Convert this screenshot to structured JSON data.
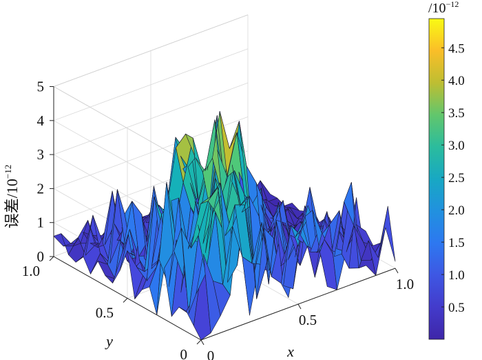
{
  "chart_data": {
    "type": "surface",
    "zlabel": "误差/10",
    "zlabel_exp": "−12",
    "xlabel": "x",
    "ylabel": "y",
    "colorbar_unit": "/10",
    "colorbar_unit_exp": "−12",
    "x_ticks": [
      {
        "v": 0,
        "label": "0"
      },
      {
        "v": 0.5,
        "label": "0.5"
      },
      {
        "v": 1.0,
        "label": "1.0"
      }
    ],
    "y_ticks": [
      {
        "v": 0,
        "label": "0"
      },
      {
        "v": 0.5,
        "label": "0.5"
      },
      {
        "v": 1.0,
        "label": "1.0"
      }
    ],
    "z_ticks": [
      {
        "v": 0,
        "label": "0"
      },
      {
        "v": 1,
        "label": "1"
      },
      {
        "v": 2,
        "label": "2"
      },
      {
        "v": 3,
        "label": "3"
      },
      {
        "v": 4,
        "label": "4"
      },
      {
        "v": 5,
        "label": "5"
      }
    ],
    "xlim": [
      0,
      1
    ],
    "ylim": [
      0,
      1
    ],
    "zlim": [
      0,
      5
    ],
    "colorbar": {
      "ticks": [
        {
          "v": 0.5,
          "label": "0.5"
        },
        {
          "v": 1.0,
          "label": "1.0"
        },
        {
          "v": 1.5,
          "label": "1.5"
        },
        {
          "v": 2.0,
          "label": "2.0"
        },
        {
          "v": 2.5,
          "label": "2.5"
        },
        {
          "v": 3.0,
          "label": "3.0"
        },
        {
          "v": 3.5,
          "label": "3.5"
        },
        {
          "v": 4.0,
          "label": "4.0"
        },
        {
          "v": 4.5,
          "label": "4.5"
        }
      ],
      "range": [
        0,
        4.95
      ],
      "colormap": [
        "#440154",
        "#3b528b",
        "#21908d",
        "#5dc963",
        "#fde725"
      ]
    },
    "grid": true,
    "colormap": "parula",
    "grid_size": 20,
    "z_values": [
      [
        0.0,
        0.1,
        0.5,
        1.0,
        3.5,
        0.2,
        1.6,
        1.3,
        2.0,
        0.3,
        1.7,
        2.8,
        1.9,
        0.2,
        0.0,
        1.1,
        2.5,
        0.4,
        0.0,
        1.3,
        0.2
      ],
      [
        0.3,
        2.3,
        1.4,
        1.2,
        2.8,
        1.8,
        1.5,
        2.6,
        0.9,
        0.6,
        2.2,
        1.8,
        1.2,
        1.1,
        1.8,
        2.1,
        0.3,
        0.2,
        0.9,
        0.3,
        1.7
      ],
      [
        0.6,
        1.0,
        1.5,
        3.2,
        2.4,
        3.2,
        3.1,
        1.0,
        2.2,
        1.8,
        0.3,
        0.1,
        1.8,
        2.2,
        1.4,
        0.8,
        0.6,
        2.6,
        0.2,
        0.1,
        0.5
      ],
      [
        0.6,
        0.3,
        2.5,
        3.4,
        3.7,
        0.8,
        1.2,
        3.1,
        0.0,
        0.9,
        2.1,
        0.8,
        1.4,
        1.9,
        0.0,
        1.0,
        0.4,
        1.9,
        1.1,
        0.5,
        0.3
      ],
      [
        0.2,
        2.7,
        2.0,
        3.2,
        3.3,
        3.6,
        2.2,
        2.7,
        2.9,
        2.2,
        0.1,
        2.4,
        0.6,
        1.1,
        0.8,
        0.5,
        1.6,
        0.4,
        0.2,
        0.9,
        0.6
      ],
      [
        1.5,
        1.9,
        1.0,
        2.0,
        1.8,
        2.6,
        3.1,
        3.8,
        2.3,
        2.4,
        2.8,
        0.2,
        0.3,
        1.1,
        0.1,
        2.3,
        0.9,
        1.1,
        0.7,
        0.2,
        0.5
      ],
      [
        0.0,
        3.8,
        2.0,
        0.5,
        2.9,
        1.3,
        3.4,
        2.0,
        3.4,
        2.6,
        0.5,
        0.2,
        1.6,
        2.0,
        0.3,
        1.1,
        0.4,
        0.8,
        0.1,
        0.6,
        0.2
      ],
      [
        0.7,
        1.4,
        0.5,
        3.0,
        1.4,
        2.0,
        0.6,
        4.0,
        3.1,
        4.3,
        3.2,
        2.6,
        1.8,
        1.3,
        1.1,
        0.0,
        1.4,
        0.7,
        0.8,
        0.2,
        0.1
      ],
      [
        0.5,
        1.1,
        2.5,
        2.8,
        0.0,
        2.4,
        1.8,
        2.1,
        4.9,
        3.7,
        4.4,
        1.7,
        0.0,
        0.8,
        1.5,
        0.2,
        0.1,
        0.4,
        0.4,
        0.5,
        0.1
      ],
      [
        0.1,
        0.8,
        2.9,
        1.7,
        1.6,
        3.0,
        4.2,
        3.1,
        3.4,
        2.2,
        2.5,
        1.7,
        2.1,
        1.5,
        0.6,
        0.9,
        0.3,
        0.6,
        0.2,
        0.1,
        0.4
      ],
      [
        1.4,
        0.8,
        0.3,
        0.6,
        2.1,
        3.9,
        4.2,
        3.4,
        2.9,
        4.3,
        2.2,
        3.4,
        1.0,
        1.0,
        1.3,
        0.1,
        0.5,
        0.2,
        0.6,
        0.3,
        0.0
      ],
      [
        0.7,
        1.8,
        0.8,
        0.2,
        2.2,
        1.6,
        3.4,
        3.0,
        1.8,
        2.7,
        4.2,
        1.4,
        1.9,
        0.2,
        0.3,
        0.8,
        0.2,
        0.4,
        0.1,
        0.2,
        0.3
      ],
      [
        0.2,
        1.0,
        2.4,
        1.9,
        0.2,
        0.4,
        2.2,
        3.2,
        2.3,
        1.2,
        1.5,
        2.0,
        1.0,
        2.1,
        1.3,
        0.9,
        0.1,
        0.3,
        0.5,
        0.1,
        0.2
      ],
      [
        0.3,
        0.1,
        1.9,
        0.2,
        0.4,
        2.4,
        1.0,
        2.9,
        2.6,
        2.7,
        0.6,
        0.4,
        0.8,
        0.0,
        1.5,
        0.3,
        0.6,
        0.2,
        0.1,
        0.3,
        0.1
      ],
      [
        0.6,
        0.4,
        2.5,
        0.3,
        0.3,
        0.6,
        1.5,
        0.0,
        3.4,
        2.9,
        1.3,
        1.6,
        1.1,
        1.0,
        0.9,
        0.4,
        0.1,
        0.2,
        0.0,
        0.2,
        0.2
      ],
      [
        0.1,
        0.6,
        0.2,
        0.8,
        0.3,
        0.1,
        0.0,
        0.2,
        1.6,
        0.7,
        1.4,
        0.4,
        0.3,
        0.2,
        0.5,
        0.8,
        0.3,
        0.1,
        0.4,
        0.1,
        0.0
      ],
      [
        0.5,
        1.6,
        0.7,
        2.1,
        0.5,
        0.1,
        0.6,
        0.2,
        0.6,
        0.5,
        0.8,
        1.5,
        0.5,
        0.3,
        0.1,
        0.0,
        0.2,
        0.2,
        0.1,
        0.1,
        0.1
      ],
      [
        0.2,
        0.3,
        0.5,
        0.4,
        0.9,
        0.3,
        0.5,
        0.6,
        1.0,
        0.1,
        0.4,
        0.2,
        0.8,
        0.4,
        0.2,
        0.3,
        0.1,
        0.0,
        0.2,
        0.6,
        0.1
      ],
      [
        0.3,
        0.7,
        1.1,
        0.2,
        0.6,
        0.2,
        0.6,
        0.1,
        0.4,
        0.3,
        0.2,
        0.1,
        0.3,
        0.5,
        0.1,
        0.2,
        0.3,
        0.1,
        0.7,
        0.1,
        0.2
      ],
      [
        0.8,
        0.4,
        0.3,
        0.2,
        0.1,
        0.5,
        0.1,
        0.3,
        0.2,
        0.4,
        0.2,
        0.3,
        0.1,
        0.2,
        0.4,
        0.1,
        0.2,
        0.2,
        0.1,
        0.8,
        0.1
      ],
      [
        0.6,
        0.2,
        0.1,
        0.4,
        0.2,
        0.1,
        0.2,
        0.1,
        0.1,
        0.2,
        0.1,
        0.2,
        0.2,
        0.1,
        0.1,
        0.2,
        0.1,
        0.1,
        0.3,
        0.1,
        0.1
      ]
    ]
  }
}
